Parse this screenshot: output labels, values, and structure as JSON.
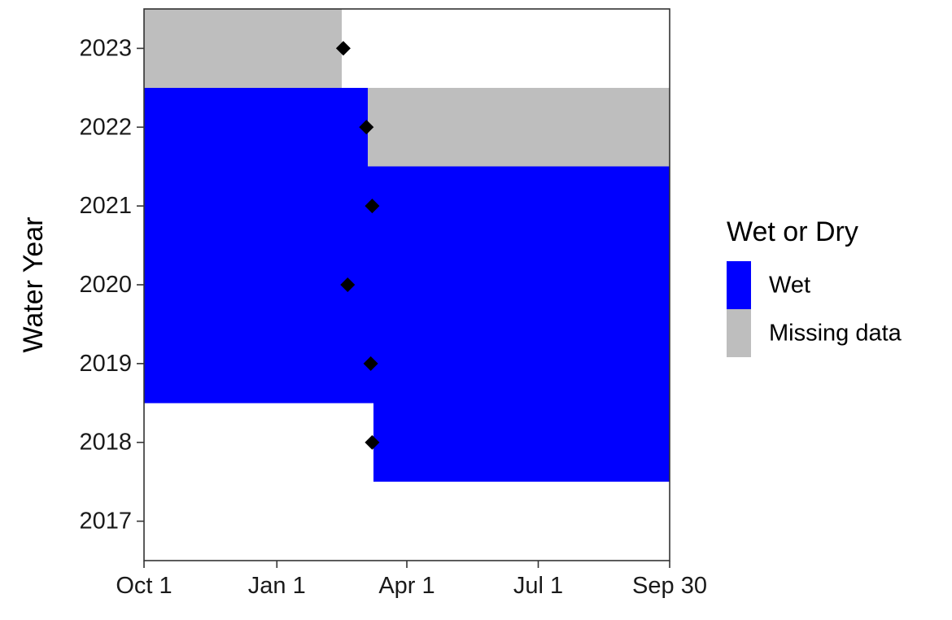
{
  "chart_data": {
    "type": "bar",
    "ylabel": "Water Year",
    "xlabel": "",
    "x_axis": {
      "start_date": "Oct 1",
      "end_date": "Sep 30",
      "ticks": [
        {
          "label": "Oct 1",
          "day": 0
        },
        {
          "label": "Jan 1",
          "day": 92
        },
        {
          "label": "Apr 1",
          "day": 182
        },
        {
          "label": "Jul 1",
          "day": 273
        },
        {
          "label": "Sep 30",
          "day": 364
        }
      ]
    },
    "years": [
      "2017",
      "2018",
      "2019",
      "2020",
      "2021",
      "2022",
      "2023"
    ],
    "legend": {
      "title": "Wet or Dry",
      "position": "right",
      "entries": [
        {
          "key": "wet",
          "label": "Wet",
          "color": "#0000ff"
        },
        {
          "key": "missing",
          "label": "Missing data",
          "color": "#bebebe"
        }
      ]
    },
    "segments": [
      {
        "year": "2018",
        "start_day": 159,
        "end_day": 364,
        "status": "wet"
      },
      {
        "year": "2019",
        "start_day": 0,
        "end_day": 364,
        "status": "wet"
      },
      {
        "year": "2020",
        "start_day": 0,
        "end_day": 364,
        "status": "wet"
      },
      {
        "year": "2021",
        "start_day": 0,
        "end_day": 364,
        "status": "wet"
      },
      {
        "year": "2022",
        "start_day": 0,
        "end_day": 155,
        "status": "wet"
      },
      {
        "year": "2022",
        "start_day": 155,
        "end_day": 364,
        "status": "missing"
      },
      {
        "year": "2023",
        "start_day": 0,
        "end_day": 137,
        "status": "missing"
      }
    ],
    "markers": [
      {
        "year": "2018",
        "day": 158
      },
      {
        "year": "2019",
        "day": 157
      },
      {
        "year": "2020",
        "day": 141
      },
      {
        "year": "2021",
        "day": 158
      },
      {
        "year": "2022",
        "day": 154
      },
      {
        "year": "2023",
        "day": 138
      }
    ],
    "grid": false
  }
}
